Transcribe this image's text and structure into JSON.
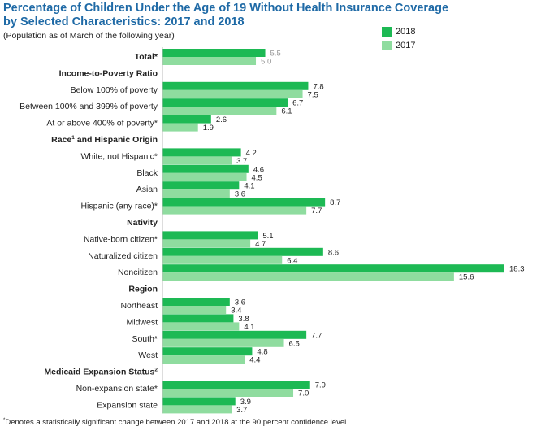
{
  "title_line1": "Percentage of Children Under the Age of 19 Without Health Insurance Coverage",
  "title_line2": "by Selected Characteristics: 2017 and 2018",
  "subtitle": "(Population as of March of the following year)",
  "footnote": "Denotes a statistically significant change between 2017 and 2018 at the 90 percent confidence level.",
  "footnote_marker": "*",
  "colors": {
    "s2018": "#1db954",
    "s2017": "#8fdc9f",
    "total_label": "#999999",
    "title": "#1f6aa6"
  },
  "chart_data": {
    "type": "bar",
    "orientation": "horizontal",
    "series": [
      {
        "name": "2018",
        "color": "#1db954"
      },
      {
        "name": "2017",
        "color": "#8fdc9f"
      }
    ],
    "xlim": [
      0,
      18.3
    ],
    "rows": [
      {
        "kind": "item",
        "label": "Total*",
        "bold": true,
        "v2018": 5.5,
        "v2017": 5.0
      },
      {
        "kind": "header",
        "label": "Income-to-Poverty Ratio"
      },
      {
        "kind": "item",
        "label": "Below 100% of poverty",
        "v2018": 7.8,
        "v2017": 7.5
      },
      {
        "kind": "item",
        "label": "Between 100% and 399% of poverty",
        "v2018": 6.7,
        "v2017": 6.1
      },
      {
        "kind": "item",
        "label": "At or above 400% of poverty*",
        "v2018": 2.6,
        "v2017": 1.9
      },
      {
        "kind": "header",
        "label": "Race and Hispanic Origin",
        "label_a": "Race",
        "sup": "1",
        "label_b": " and Hispanic Origin"
      },
      {
        "kind": "item",
        "label": "White, not Hispanic*",
        "v2018": 4.2,
        "v2017": 3.7
      },
      {
        "kind": "item",
        "label": "Black",
        "v2018": 4.6,
        "v2017": 4.5
      },
      {
        "kind": "item",
        "label": "Asian",
        "v2018": 4.1,
        "v2017": 3.6
      },
      {
        "kind": "item",
        "label": "Hispanic (any race)*",
        "v2018": 8.7,
        "v2017": 7.7
      },
      {
        "kind": "header",
        "label": "Nativity"
      },
      {
        "kind": "item",
        "label": "Native-born citizen*",
        "v2018": 5.1,
        "v2017": 4.7
      },
      {
        "kind": "item",
        "label": "Naturalized citizen",
        "v2018": 8.6,
        "v2017": 6.4
      },
      {
        "kind": "item",
        "label": "Noncitizen",
        "v2018": 18.3,
        "v2017": 15.6
      },
      {
        "kind": "header",
        "label": "Region"
      },
      {
        "kind": "item",
        "label": "Northeast",
        "v2018": 3.6,
        "v2017": 3.4
      },
      {
        "kind": "item",
        "label": "Midwest",
        "v2018": 3.8,
        "v2017": 4.1
      },
      {
        "kind": "item",
        "label": "South*",
        "v2018": 7.7,
        "v2017": 6.5
      },
      {
        "kind": "item",
        "label": "West",
        "v2018": 4.8,
        "v2017": 4.4
      },
      {
        "kind": "header",
        "label": "Medicaid Expansion Status",
        "label_a": "Medicaid Expansion Status",
        "sup": "2",
        "label_b": ""
      },
      {
        "kind": "item",
        "label": "Non-expansion state*",
        "v2018": 7.9,
        "v2017": 7.0
      },
      {
        "kind": "item",
        "label": "Expansion state",
        "v2018": 3.9,
        "v2017": 3.7
      }
    ]
  }
}
